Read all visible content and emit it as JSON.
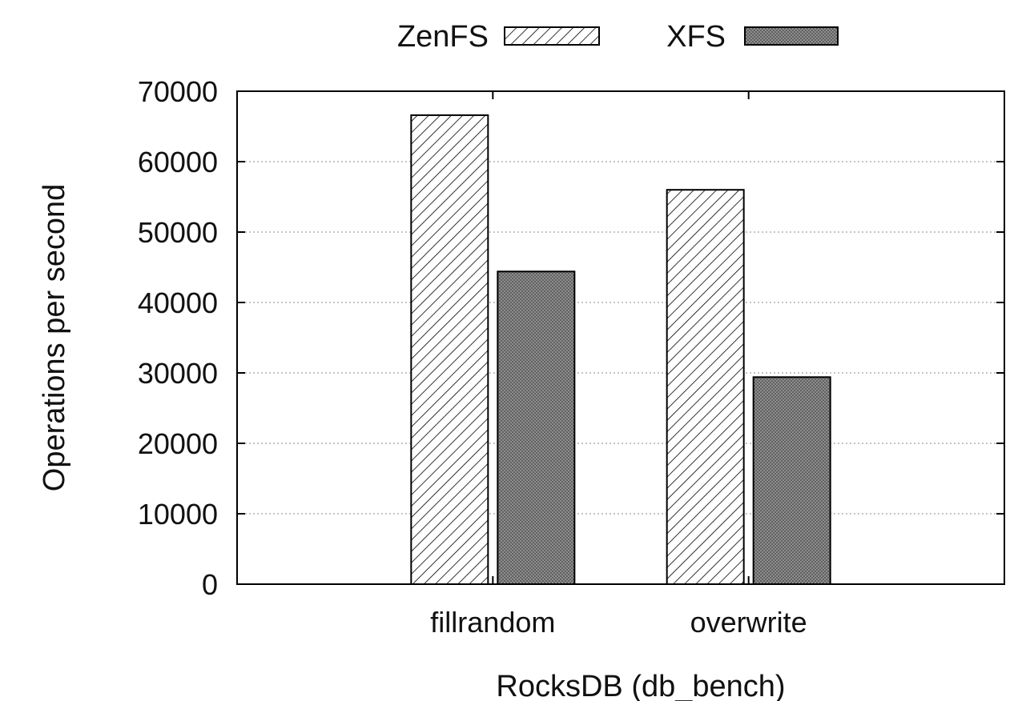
{
  "chart_data": {
    "type": "bar",
    "categories": [
      "fillrandom",
      "overwrite"
    ],
    "series": [
      {
        "name": "ZenFS",
        "values": [
          66600,
          56000
        ],
        "pattern": "diagonal-hatch"
      },
      {
        "name": "XFS",
        "values": [
          44400,
          29400
        ],
        "pattern": "dense-crosshatch"
      }
    ],
    "xlabel": "RocksDB (db_bench)",
    "ylabel": "Operations per second",
    "ylim": [
      0,
      70000
    ],
    "yticks": [
      0,
      10000,
      20000,
      30000,
      40000,
      50000,
      60000,
      70000
    ],
    "grid": true,
    "legend_position": "top-center",
    "colors": {
      "bar_outline": "#000000",
      "grid": "#888888",
      "xfs_fill": "#9a9a9a"
    }
  }
}
